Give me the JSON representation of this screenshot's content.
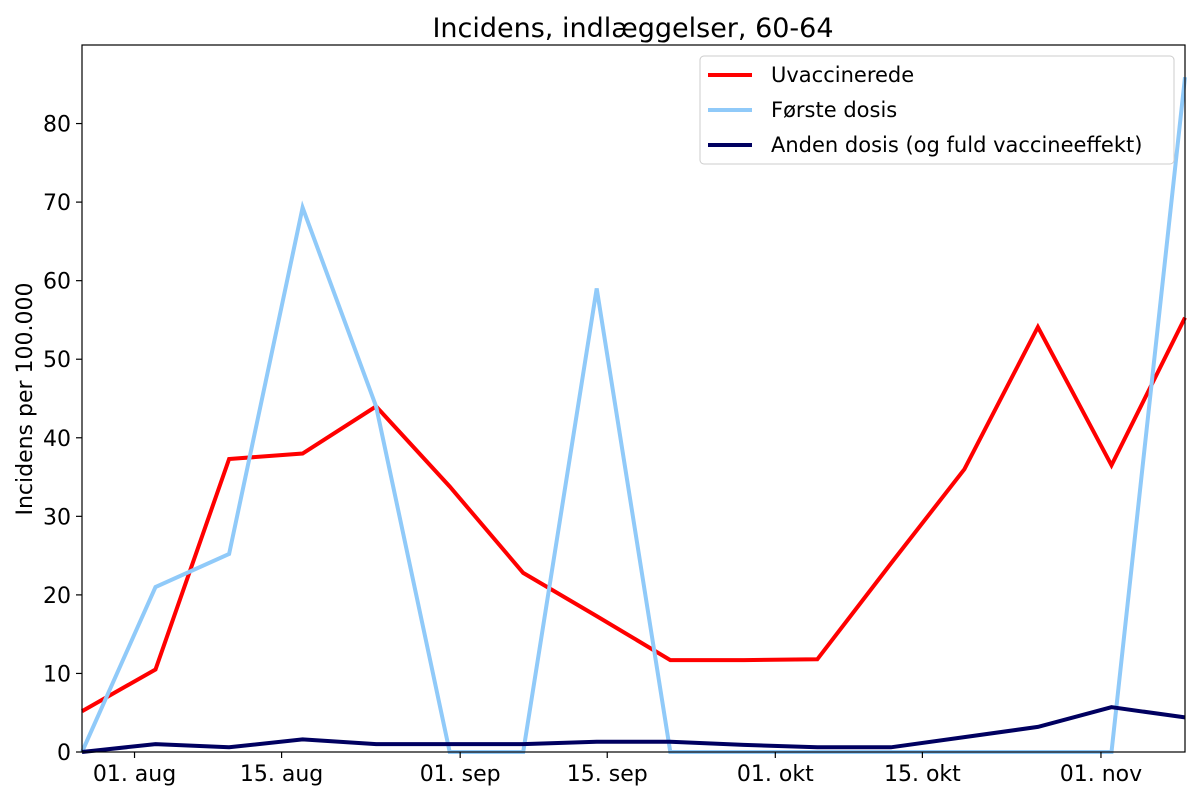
{
  "chart_data": {
    "type": "line",
    "title": "Incidens, indlæggelser, 60-64",
    "xlabel": "",
    "ylabel": "Incidens per 100.000",
    "x_type": "date",
    "x": [
      "2021-07-27",
      "2021-08-03",
      "2021-08-10",
      "2021-08-17",
      "2021-08-24",
      "2021-08-31",
      "2021-09-07",
      "2021-09-14",
      "2021-09-21",
      "2021-09-28",
      "2021-10-05",
      "2021-10-12",
      "2021-10-19",
      "2021-10-26",
      "2021-11-02",
      "2021-11-09"
    ],
    "xlim": [
      "2021-07-27",
      "2021-11-09"
    ],
    "ylim": [
      0,
      90
    ],
    "x_ticks": [
      {
        "date": "2021-08-01",
        "label": "01. aug"
      },
      {
        "date": "2021-08-15",
        "label": "15. aug"
      },
      {
        "date": "2021-09-01",
        "label": "01. sep"
      },
      {
        "date": "2021-09-15",
        "label": "15. sep"
      },
      {
        "date": "2021-10-01",
        "label": "01. okt"
      },
      {
        "date": "2021-10-15",
        "label": "15. okt"
      },
      {
        "date": "2021-11-01",
        "label": "01. nov"
      }
    ],
    "y_ticks": [
      0,
      10,
      20,
      30,
      40,
      50,
      60,
      70,
      80
    ],
    "grid": false,
    "legend_position": "top-right",
    "series": [
      {
        "name": "Uvaccinerede",
        "color": "#ff0000",
        "values": [
          5.2,
          10.5,
          37.3,
          38.0,
          44.0,
          33.8,
          22.8,
          17.3,
          11.7,
          11.7,
          11.8,
          24.0,
          36.0,
          54.1,
          36.5,
          55.3
        ]
      },
      {
        "name": "Første dosis",
        "color": "#90caf9",
        "values": [
          0,
          21.0,
          25.2,
          69.3,
          44.0,
          0,
          0,
          59.0,
          0,
          0,
          0,
          0,
          0,
          0,
          0,
          85.9
        ]
      },
      {
        "name": "Anden dosis (og fuld vaccineeffekt)",
        "color": "#000060",
        "values": [
          0,
          1.0,
          0.6,
          1.6,
          1.0,
          1.0,
          1.0,
          1.3,
          1.3,
          0.9,
          0.6,
          0.6,
          1.9,
          3.2,
          5.7,
          4.4
        ]
      }
    ]
  }
}
